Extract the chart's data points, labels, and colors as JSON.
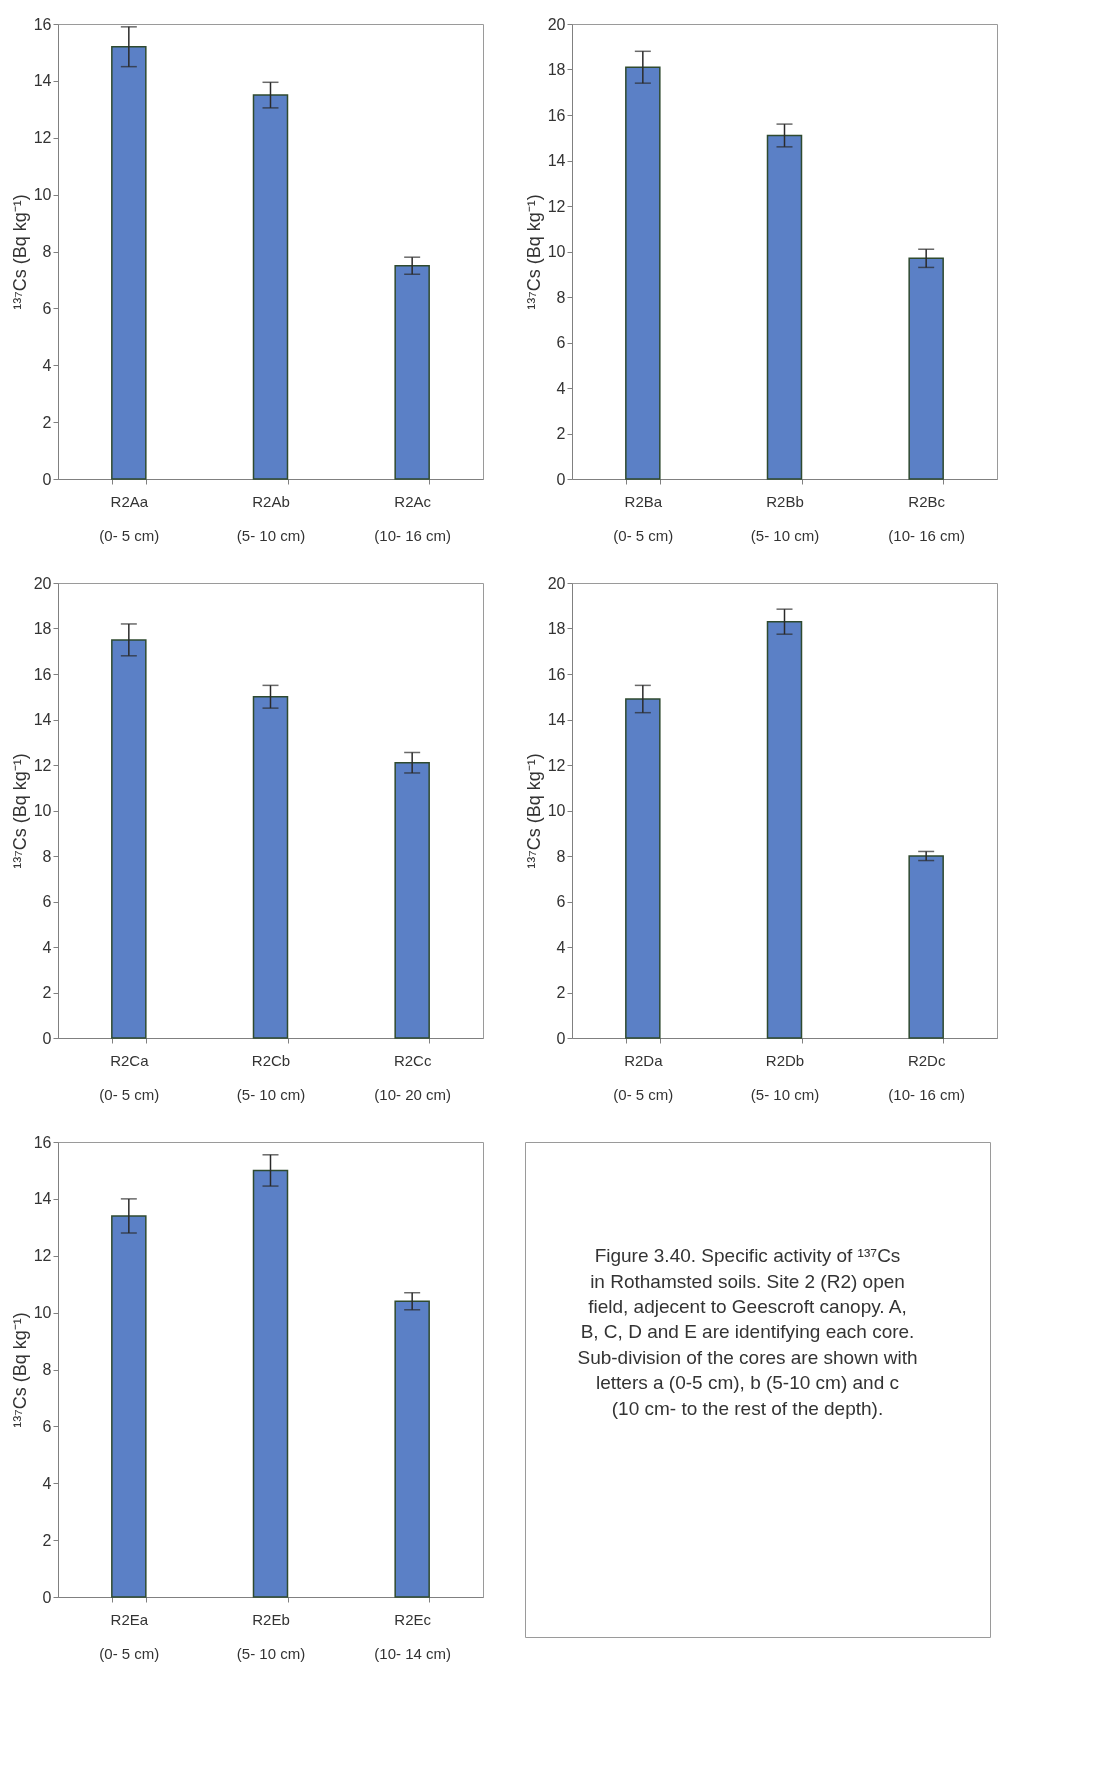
{
  "chart_data": [
    {
      "type": "bar",
      "ylabel": "¹³⁷Cs (Bq kg⁻¹)",
      "categories": [
        "R2Aa\n(0- 5 cm)",
        "R2Ab\n(5- 10 cm)",
        "R2Ac\n(10- 16 cm)"
      ],
      "values": [
        15.2,
        13.5,
        7.5
      ],
      "errors": [
        0.7,
        0.45,
        0.3
      ],
      "color": "#5b80c6",
      "ylim": [
        0,
        16
      ],
      "yticks": [
        0,
        2,
        4,
        6,
        8,
        10,
        12,
        14,
        16
      ],
      "grid": false
    },
    {
      "type": "bar",
      "ylabel": "¹³⁷Cs (Bq kg⁻¹)",
      "categories": [
        "R2Ba\n(0- 5 cm)",
        "R2Bb\n(5- 10 cm)",
        "R2Bc\n(10- 16 cm)"
      ],
      "values": [
        18.1,
        15.1,
        9.7
      ],
      "errors": [
        0.7,
        0.5,
        0.4
      ],
      "color": "#5b80c6",
      "ylim": [
        0,
        20
      ],
      "yticks": [
        0,
        2,
        4,
        6,
        8,
        10,
        12,
        14,
        16,
        18,
        20
      ],
      "grid": false
    },
    {
      "type": "bar",
      "ylabel": "¹³⁷Cs (Bq kg⁻¹)",
      "categories": [
        "R2Ca\n(0- 5 cm)",
        "R2Cb\n(5- 10 cm)",
        "R2Cc\n(10- 20 cm)"
      ],
      "values": [
        17.5,
        15.0,
        12.1
      ],
      "errors": [
        0.7,
        0.5,
        0.45
      ],
      "color": "#5b80c6",
      "ylim": [
        0,
        20
      ],
      "yticks": [
        0,
        2,
        4,
        6,
        8,
        10,
        12,
        14,
        16,
        18,
        20
      ],
      "grid": false
    },
    {
      "type": "bar",
      "ylabel": "¹³⁷Cs (Bq kg⁻¹)",
      "categories": [
        "R2Da\n(0- 5 cm)",
        "R2Db\n(5- 10 cm)",
        "R2Dc\n(10- 16 cm)"
      ],
      "values": [
        14.9,
        18.3,
        8.0
      ],
      "errors": [
        0.6,
        0.55,
        0.2
      ],
      "color": "#5b80c6",
      "ylim": [
        0,
        20
      ],
      "yticks": [
        0,
        2,
        4,
        6,
        8,
        10,
        12,
        14,
        16,
        18,
        20
      ],
      "grid": false
    },
    {
      "type": "bar",
      "ylabel": "¹³⁷Cs (Bq kg⁻¹)",
      "categories": [
        "R2Ea\n(0- 5 cm)",
        "R2Eb\n(5- 10 cm)",
        "R2Ec\n(10- 14 cm)"
      ],
      "values": [
        13.4,
        15.0,
        10.4
      ],
      "errors": [
        0.6,
        0.55,
        0.3
      ],
      "color": "#5b80c6",
      "ylim": [
        0,
        16
      ],
      "yticks": [
        0,
        2,
        4,
        6,
        8,
        10,
        12,
        14,
        16
      ],
      "grid": false
    },
    {
      "type": "other",
      "annotations": [
        "Figure 3.40. Specific activity of ¹³⁷Cs in Rothamsted soils. Site 2 (R2) open field, adjecent to Geescroft canopy. A, B, C, D and E are identifying each core. Sub-division of the cores are shown with letters a (0-5 cm), b (5-10 cm) and c (10 cm- to the rest of the depth)."
      ]
    }
  ]
}
